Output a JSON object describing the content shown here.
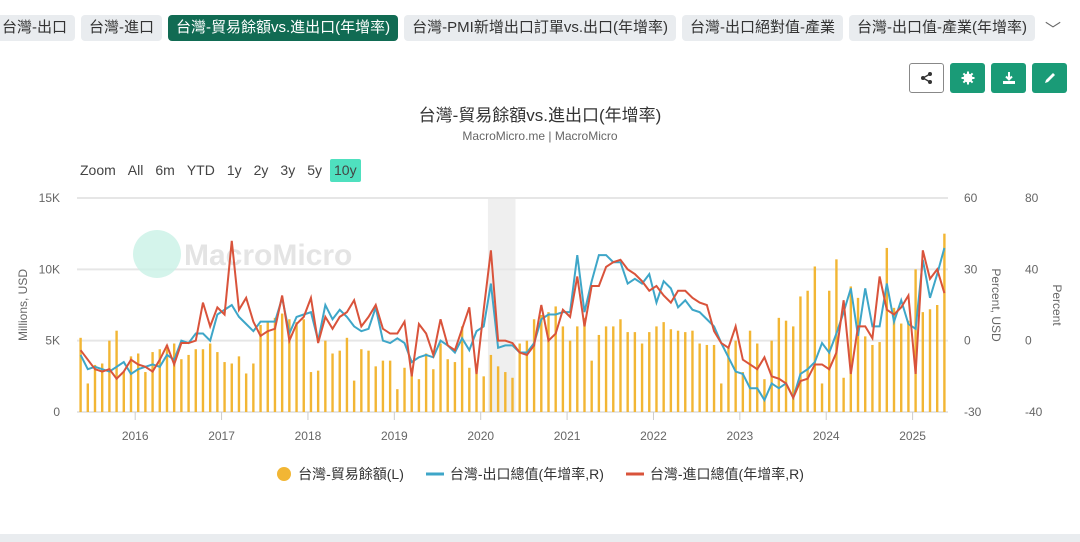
{
  "tabs": [
    {
      "label": "台灣-出口"
    },
    {
      "label": "台灣-進口"
    },
    {
      "label": "台灣-貿易餘額vs.進出口(年增率)",
      "active": true
    },
    {
      "label": "台灣-PMI新增出口訂單vs.出口(年增率)"
    },
    {
      "label": "台灣-出口絕對值-產業"
    },
    {
      "label": "台灣-出口值-產業(年增率)"
    }
  ],
  "toolbar": {
    "icons": [
      "share-icon",
      "gear-icon",
      "download-icon",
      "pencil-icon"
    ],
    "accent": "#1a9b77",
    "active_tab_color": "#116b53"
  },
  "range_selector": {
    "label": "Zoom",
    "options": [
      "All",
      "6m",
      "YTD",
      "1y",
      "2y",
      "3y",
      "5y",
      "10y"
    ],
    "selected": "10y"
  },
  "watermark": "MacroMicro",
  "chart_data": {
    "type": "bar+line",
    "title": "台灣-貿易餘額vs.進出口(年增率)",
    "subtitle": "MacroMicro.me | MacroMicro",
    "x_start": "2015-05",
    "x_end": "2025-05",
    "frequency": "monthly",
    "x_ticks": [
      "2016",
      "2017",
      "2018",
      "2019",
      "2020",
      "2021",
      "2022",
      "2023",
      "2024",
      "2025"
    ],
    "plot_band": [
      "2020-02",
      "2020-05"
    ],
    "y_left": {
      "label": "Millions, USD",
      "range": [
        0,
        15000
      ],
      "ticks": [
        "0",
        "5K",
        "10K",
        "15K"
      ]
    },
    "y_right1": {
      "label": "Percent, USD",
      "range": [
        -30,
        60
      ],
      "ticks": [
        "-30",
        "0",
        "30",
        "60"
      ]
    },
    "y_right2": {
      "label": "Percent",
      "range": [
        -40,
        80
      ],
      "ticks": [
        "-40",
        "0",
        "40",
        "80"
      ]
    },
    "grid": true,
    "legend": "bottom",
    "series": [
      {
        "name": "台灣-貿易餘額(L)",
        "type": "bar",
        "axis": "left",
        "color": "#f2b634",
        "values": [
          5200,
          2000,
          3300,
          3400,
          5000,
          5700,
          2800,
          3900,
          4100,
          2800,
          4200,
          4400,
          4700,
          4800,
          3700,
          4000,
          4400,
          4400,
          4800,
          4200,
          3500,
          3400,
          3900,
          2700,
          3400,
          6100,
          6300,
          6600,
          6900,
          6500,
          6300,
          6500,
          2800,
          2900,
          5000,
          4100,
          4300,
          5200,
          2200,
          4400,
          4300,
          3200,
          3600,
          3600,
          1600,
          3100,
          3100,
          2300,
          4100,
          3000,
          4800,
          3700,
          3500,
          6000,
          3100,
          3400,
          2500,
          4000,
          3200,
          2800,
          2400,
          4800,
          5000,
          6500,
          6800,
          7000,
          7400,
          6000,
          5000,
          6000,
          6600,
          3600,
          5400,
          6000,
          6000,
          6500,
          5600,
          5600,
          4800,
          5600,
          6000,
          6300,
          5800,
          5700,
          5600,
          5700,
          4800,
          4700,
          4700,
          2000,
          4500,
          5000,
          2800,
          5700,
          4800,
          2300,
          5000,
          6600,
          6400,
          6000,
          8100,
          8500,
          10200,
          2000,
          8500,
          10700,
          2400,
          8800,
          8000,
          5300,
          4700,
          4900,
          11500,
          7300,
          6200,
          6400,
          10000,
          7000,
          7200,
          7500,
          12500
        ]
      },
      {
        "name": "台灣-出口總值(年增率,R)",
        "type": "line",
        "axis": "right1",
        "color": "#3ea6c8",
        "values": [
          -6,
          -12,
          -11,
          -12,
          -13,
          -11,
          -9,
          -14,
          -12,
          -11,
          -10,
          -11,
          -6,
          -8,
          0,
          -1,
          3,
          3,
          0,
          11,
          13,
          15,
          10,
          7,
          4,
          8,
          8,
          8,
          18,
          3,
          10,
          11,
          12,
          0,
          15,
          9,
          13,
          10,
          6,
          4,
          5,
          14,
          0,
          -1,
          1,
          -1,
          -9,
          -7,
          -6,
          -7,
          0,
          -2,
          -5,
          1,
          -4,
          4,
          6,
          24,
          -3,
          -2,
          -2,
          -5,
          -5,
          -1,
          9,
          11,
          11,
          12,
          12,
          36,
          12,
          25,
          36,
          36,
          33,
          33,
          24,
          26,
          24,
          28,
          16,
          25,
          22,
          14,
          17,
          13,
          12,
          9,
          6,
          -1,
          -7,
          -13,
          -14,
          -20,
          -20,
          -25,
          -18,
          -20,
          -18,
          -24,
          -14,
          -12,
          -9,
          -1,
          -5,
          3,
          12,
          22,
          2,
          22,
          6,
          6,
          24,
          8,
          17,
          7,
          5,
          34,
          18,
          28,
          39
        ]
      },
      {
        "name": "台灣-進口總值(年增率,R)",
        "type": "line",
        "axis": "right1",
        "color": "#d9533b",
        "values": [
          -4,
          -8,
          -12,
          -13,
          -12,
          -16,
          -13,
          -8,
          -10,
          -11,
          -13,
          -8,
          -2,
          -10,
          -1,
          -1,
          0,
          16,
          6,
          14,
          11,
          42,
          13,
          18,
          8,
          2,
          4,
          5,
          19,
          0,
          7,
          10,
          18,
          -1,
          10,
          5,
          10,
          12,
          17,
          6,
          10,
          15,
          5,
          3,
          3,
          8,
          -15,
          7,
          3,
          -6,
          9,
          -2,
          -4,
          5,
          14,
          -14,
          13,
          38,
          0,
          0,
          -1,
          -5,
          -6,
          -2,
          15,
          0,
          3,
          13,
          10,
          27,
          6,
          23,
          23,
          31,
          33,
          34,
          30,
          28,
          25,
          21,
          23,
          19,
          16,
          21,
          21,
          18,
          16,
          15,
          4,
          -1,
          -3,
          6,
          -8,
          -10,
          -12,
          -7,
          -15,
          -16,
          -18,
          -24,
          -17,
          -16,
          -10,
          -10,
          -12,
          -5,
          17,
          -14,
          6,
          6,
          1,
          27,
          13,
          11,
          14,
          19,
          -14,
          38,
          26,
          30,
          20
        ]
      }
    ]
  }
}
